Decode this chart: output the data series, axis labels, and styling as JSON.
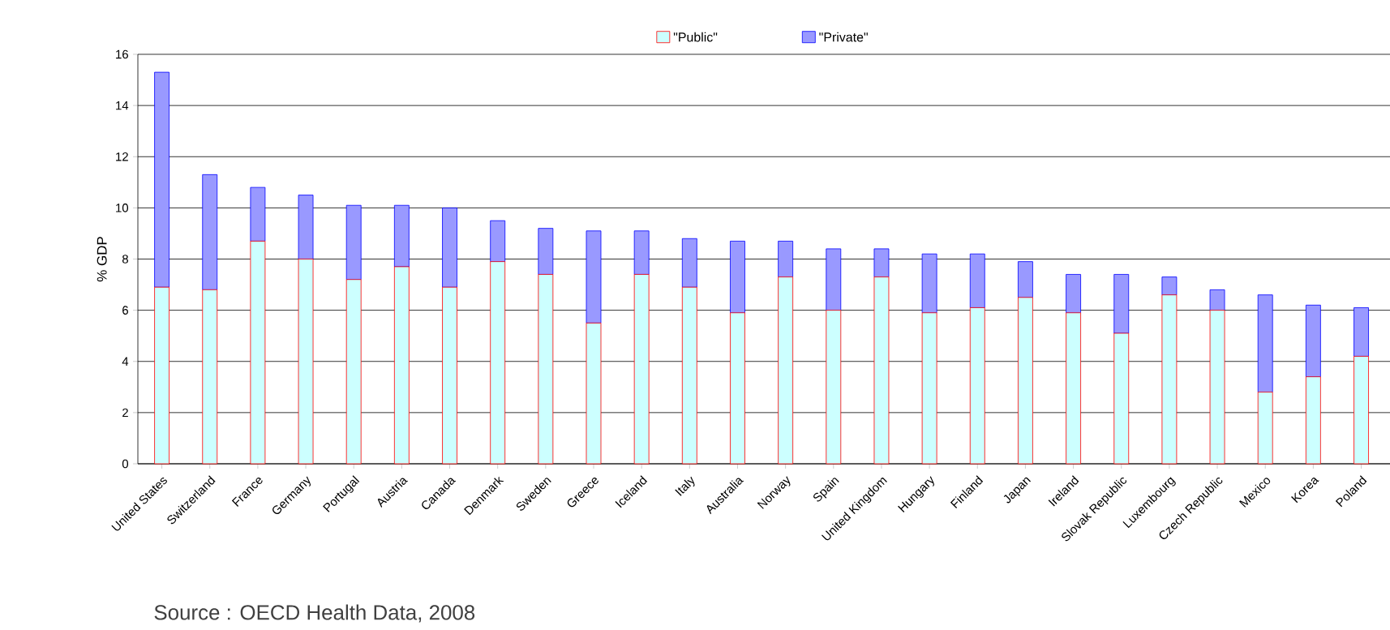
{
  "chart_data": {
    "type": "bar",
    "stacked": true,
    "ylabel": "% GDP",
    "categories": [
      "United States",
      "Switzerland",
      "France",
      "Germany",
      "Portugal",
      "Austria",
      "Canada",
      "Denmark",
      "Sweden",
      "Greece",
      "Iceland",
      "Italy",
      "Australia",
      "Norway",
      "Spain",
      "United Kingdom",
      "Hungary",
      "Finland",
      "Japan",
      "Ireland",
      "Slovak Republic",
      "Luxembourg",
      "Czech Republic",
      "Mexico",
      "Korea",
      "Poland"
    ],
    "series": [
      {
        "name": "\"Public\"",
        "color": "#ccffff",
        "values": [
          6.9,
          6.8,
          8.7,
          8.0,
          7.2,
          7.7,
          6.9,
          7.9,
          7.4,
          5.5,
          7.4,
          6.9,
          5.9,
          7.3,
          6.0,
          7.3,
          5.9,
          6.1,
          6.5,
          5.9,
          5.1,
          6.6,
          6.0,
          2.8,
          3.4,
          4.2
        ]
      },
      {
        "name": "\"Private\"",
        "color": "#9999ff",
        "values": [
          8.4,
          4.5,
          2.1,
          2.5,
          2.9,
          2.4,
          3.1,
          1.6,
          1.8,
          3.6,
          1.7,
          1.9,
          2.8,
          1.4,
          2.4,
          1.1,
          2.3,
          2.1,
          1.4,
          1.5,
          2.3,
          0.7,
          0.8,
          3.8,
          2.8,
          1.9
        ]
      }
    ],
    "ylim": [
      0,
      16
    ],
    "yticks": [
      0,
      2,
      4,
      6,
      8,
      10,
      12,
      14,
      16
    ],
    "grid": "y",
    "legend": "top",
    "annotations": [
      "Source : OECD Health Data, 2008"
    ]
  }
}
